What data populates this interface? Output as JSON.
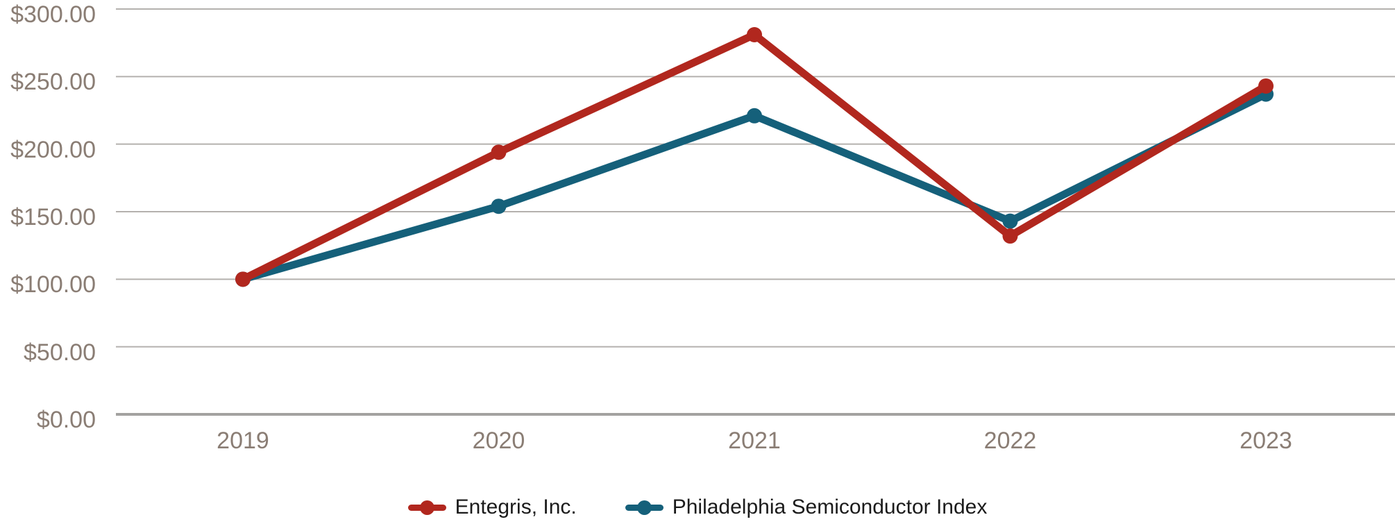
{
  "colors": {
    "background": "#ffffff",
    "axis_label": "#8a7d74",
    "gridline": "#b4b1ae",
    "axis_line": "#a3a2a0",
    "legend_text": "#1b1b1b",
    "entegris_red": "#b1271e",
    "sox_teal": "#15607a"
  },
  "chart_data": {
    "type": "line",
    "title": "",
    "xlabel": "",
    "ylabel": "",
    "categories": [
      "2019",
      "2020",
      "2021",
      "2022",
      "2023"
    ],
    "series": [
      {
        "name": "Entegris, Inc.",
        "color": "#b1271e",
        "marker": "circle",
        "values": [
          100,
          194,
          281,
          132,
          243
        ]
      },
      {
        "name": "Philadelphia Semiconductor Index",
        "color": "#15607a",
        "marker": "circle",
        "values": [
          100,
          154,
          221,
          143,
          237
        ]
      }
    ],
    "ylim": [
      0,
      300
    ],
    "y_ticks": [
      {
        "value": 0,
        "label": "$0.00"
      },
      {
        "value": 50,
        "label": "$50.00"
      },
      {
        "value": 100,
        "label": "$100.00"
      },
      {
        "value": 150,
        "label": "$150.00"
      },
      {
        "value": 200,
        "label": "$200.00"
      },
      {
        "value": 250,
        "label": "$250.00"
      },
      {
        "value": 300,
        "label": "$300.00"
      }
    ],
    "grid": "horizontal",
    "x_axis_line": true,
    "legend_position": "bottom-center"
  }
}
